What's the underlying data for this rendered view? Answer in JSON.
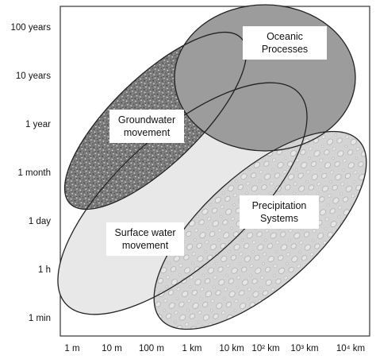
{
  "y_ticks": [
    "100 years",
    "10 years",
    "1 year",
    "1 month",
    "1 day",
    "1 h",
    "1 min"
  ],
  "x_ticks": [
    "1 m",
    "10 m",
    "100 m",
    "1 km",
    "10 km",
    "10² km",
    "10³ km",
    "10⁴ km"
  ],
  "regions": {
    "groundwater": {
      "line1": "Groundwater",
      "line2": "movement",
      "fill": "#7a7a7a"
    },
    "oceanic": {
      "line1": "Oceanic",
      "line2": "Processes",
      "fill": "#9c9c9c"
    },
    "surface": {
      "line1": "Surface water",
      "line2": "movement",
      "fill": "#e8e8e8"
    },
    "precipitation": {
      "line1": "Precipitation",
      "line2": "Systems",
      "fill": "#d4d4d4"
    }
  }
}
